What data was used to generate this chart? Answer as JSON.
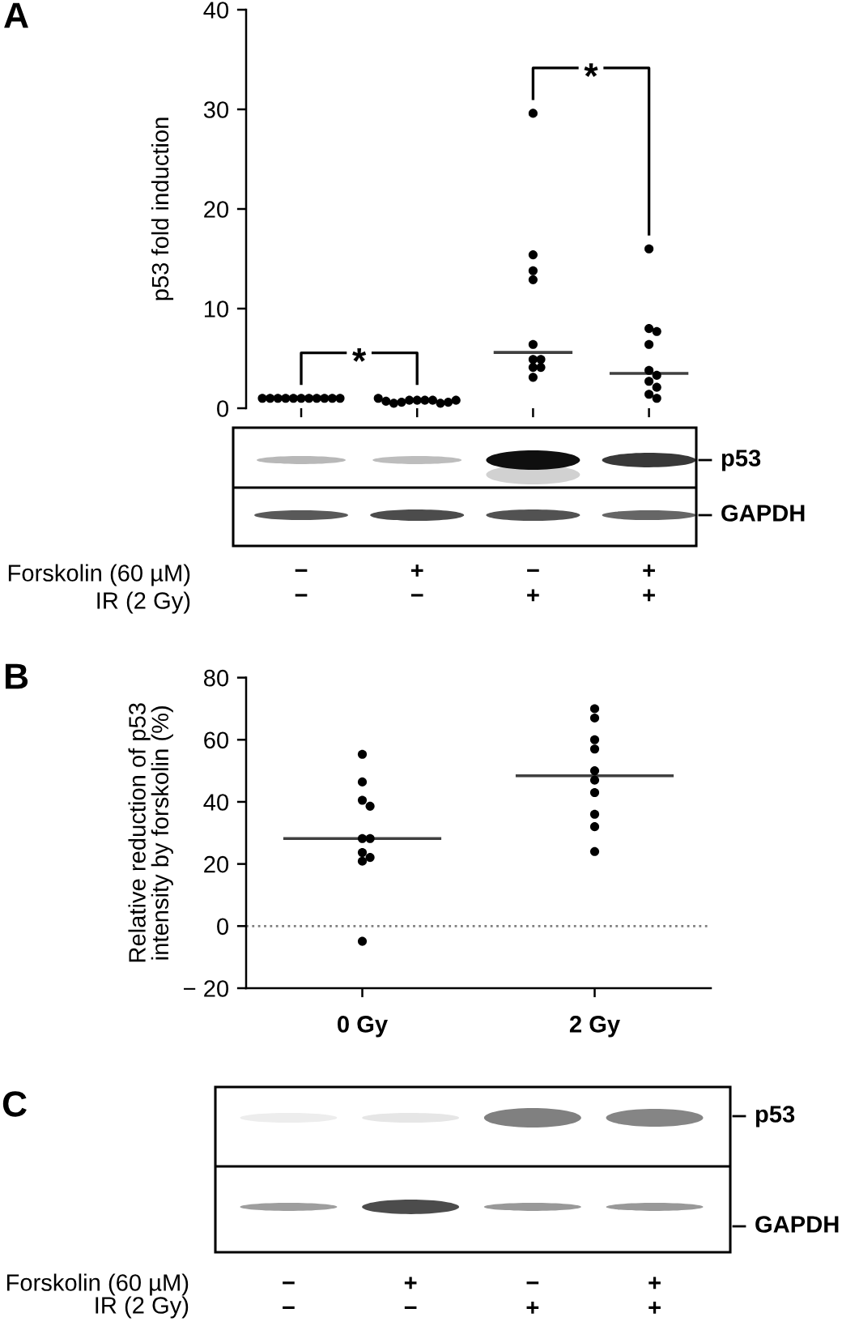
{
  "chart_data": [
    {
      "type": "scatter",
      "title": "A",
      "ylabel": "p53 fold induction",
      "categories": [
        "−\n−",
        "+\n−",
        "−\n+",
        "+\n+"
      ],
      "ylim": [
        0,
        40
      ],
      "yticks": [
        0,
        10,
        20,
        30,
        40
      ],
      "series": [
        {
          "type": "scatter",
          "color": "#000000",
          "marker": "circle",
          "x": [
            "−\n−",
            "−\n−",
            "−\n−",
            "−\n−",
            "−\n−",
            "−\n−",
            "−\n−",
            "−\n−",
            "−\n−",
            "−\n−",
            "−\n−",
            "+\n−",
            "+\n−",
            "+\n−",
            "+\n−",
            "+\n−",
            "+\n−",
            "+\n−",
            "+\n−",
            "+\n−",
            "+\n−",
            "+\n−",
            "−\n+",
            "−\n+",
            "−\n+",
            "−\n+",
            "−\n+",
            "−\n+",
            "−\n+",
            "−\n+",
            "−\n+",
            "−\n+",
            "+\n+",
            "+\n+",
            "+\n+",
            "+\n+",
            "+\n+",
            "+\n+",
            "+\n+",
            "+\n+",
            "+\n+",
            "+\n+"
          ],
          "values": [
            1.0,
            1.0,
            1.0,
            1.0,
            1.0,
            1.0,
            1.0,
            1.0,
            1.0,
            1.0,
            1.0,
            0.8,
            0.8,
            0.8,
            0.8,
            0.6,
            0.5,
            0.5,
            0.6,
            0.7,
            0.8,
            1.0,
            29.6,
            15.4,
            13.8,
            12.9,
            6.4,
            4.9,
            4.9,
            4.1,
            4.1,
            3.1,
            16.0,
            8.0,
            7.7,
            6.4,
            3.8,
            3.3,
            2.7,
            2.1,
            1.4,
            1.0
          ]
        }
      ],
      "ref_lines": [
        {
          "axis": "y",
          "value": 5.6,
          "color": "#404040"
        },
        {
          "axis": "y",
          "value": 3.5,
          "color": "#404040"
        }
      ],
      "annotations": [
        "*",
        "*",
        "p53",
        "GAPDH",
        "Forskolin (60 µM)",
        "IR (2 Gy)"
      ]
    },
    {
      "type": "scatter",
      "title": "B",
      "ylabel": "Relative reduction of p53\nintensity by forskolin (%)",
      "categories": [
        "0 Gy",
        "2 Gy"
      ],
      "ylim": [
        -20,
        80
      ],
      "yticks": [
        {
          "value": -20,
          "label": "− 20"
        },
        0,
        20,
        40,
        60,
        80
      ],
      "ref_lines": [
        {
          "axis": "y",
          "value": 0,
          "color": "#7f7f7f",
          "line_style": "dotted"
        },
        {
          "axis": "y",
          "value": 28.2,
          "color": "#404040"
        },
        {
          "axis": "y",
          "value": 48.4,
          "color": "#404040"
        }
      ],
      "series": [
        {
          "type": "scatter",
          "color": "#000000",
          "marker": "circle",
          "x": [
            "0 Gy",
            "0 Gy",
            "0 Gy",
            "0 Gy",
            "0 Gy",
            "0 Gy",
            "0 Gy",
            "0 Gy",
            "0 Gy",
            "0 Gy",
            "2 Gy",
            "2 Gy",
            "2 Gy",
            "2 Gy",
            "2 Gy",
            "2 Gy",
            "2 Gy",
            "2 Gy",
            "2 Gy",
            "2 Gy"
          ],
          "values": [
            55.3,
            46.4,
            40.5,
            38.6,
            28.2,
            28.2,
            23.7,
            22.1,
            20.9,
            -4.9,
            70,
            67,
            60,
            57,
            50,
            47,
            43,
            36,
            32,
            24
          ]
        }
      ]
    },
    {
      "type": "other",
      "title": "C",
      "categories": [
        "−\n−",
        "+\n−",
        "−\n+",
        "+\n+"
      ],
      "annotations": [
        "p53",
        "GAPDH",
        "Forskolin (60 µM)",
        "IR (2 Gy)"
      ]
    }
  ]
}
